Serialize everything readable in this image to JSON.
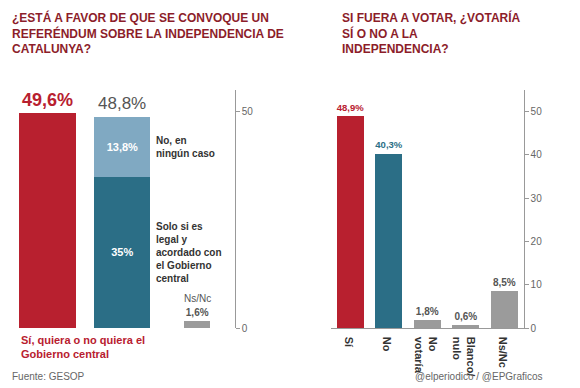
{
  "chart_data": [
    {
      "type": "bar",
      "title": "¿ESTÁ A FAVOR DE QUE SE CONVOQUE UN REFERÉNDUM SOBRE LA INDEPENDENCIA DE CATALUNYA?",
      "categories": [
        null,
        null,
        null
      ],
      "stacked": true,
      "data_labels": true,
      "tick_labels": "y",
      "grid": false,
      "series": [
        {
          "name": "Sí, quiera o no quiera el Gobierno central",
          "color": "#b8202f",
          "values": [
            49.6,
            null,
            null
          ],
          "value_labels": [
            "49,6%",
            null,
            null
          ]
        },
        {
          "name": "Solo si es legal y acordado con el Gobierno central",
          "color": "#2b6e86",
          "values": [
            null,
            35,
            null
          ],
          "value_labels": [
            null,
            "35%",
            null
          ]
        },
        {
          "name": "No, en ningún caso",
          "color": "#80a9c2",
          "values": [
            null,
            13.8,
            null
          ],
          "value_labels": [
            null,
            "13,8%",
            null
          ]
        },
        {
          "name": "Ns/Nc",
          "color": "#9b9b9b",
          "values": [
            null,
            null,
            1.6
          ],
          "value_labels": [
            null,
            null,
            "1,6%"
          ]
        }
      ],
      "totals": [
        null,
        48.8,
        null
      ],
      "total_labels": [
        null,
        "48,8%",
        null
      ],
      "ylim": [
        0,
        55
      ],
      "yticks": [
        0,
        50
      ]
    },
    {
      "type": "bar",
      "title": "SI FUERA A VOTAR, ¿VOTARÍA SÍ O NO A LA INDEPENDENCIA?",
      "categories": [
        "Sí",
        "No",
        "No votaría",
        "Blanco/ nulo",
        "Ns/Nc"
      ],
      "values": [
        48.9,
        40.3,
        1.8,
        0.6,
        8.5
      ],
      "value_labels": [
        "48,9%",
        "40,3%",
        "1,8%",
        "0,6%",
        "8,5%"
      ],
      "colors": [
        "#b8202f",
        "#2b6e86",
        "#9b9b9b",
        "#9b9b9b",
        "#9b9b9b"
      ],
      "data_labels": true,
      "grid": false,
      "ylim": [
        0,
        55
      ],
      "yticks": [
        0,
        10,
        20,
        30,
        40,
        50
      ]
    }
  ],
  "source": "Fuente: GESOP",
  "credit": "@elperiodico / @EPGraficos"
}
